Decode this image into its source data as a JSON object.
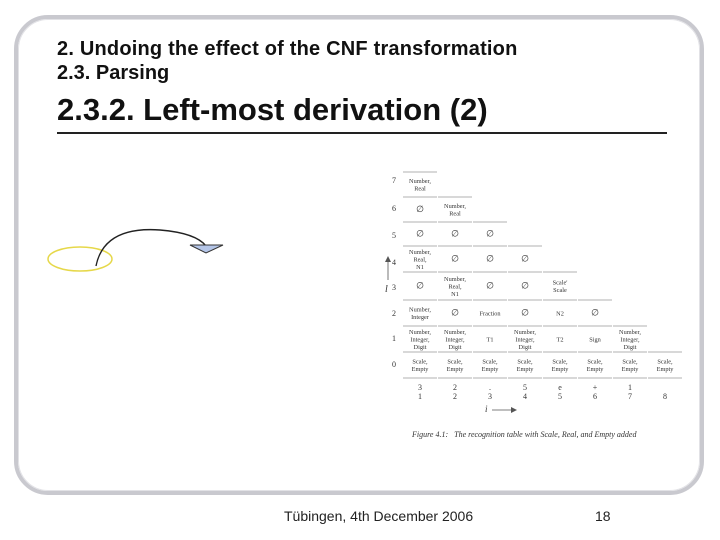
{
  "slide": {
    "supertitle_line1": "2. Undoing the effect of the CNF transformation",
    "supertitle_line2": "2.3. Parsing",
    "title": "2.3.2. Left-most derivation (2)"
  },
  "figure": {
    "caption_label": "Figure 4.1:",
    "caption_text": "The recognition table with Scale, Real, and Empty added",
    "axis_i": "i",
    "axis_l": "l",
    "row_numbers": [
      "7",
      "6",
      "5",
      "4",
      "3",
      "2",
      "1",
      "0"
    ],
    "cells": {
      "r7c1": [
        "Number,",
        "Real"
      ],
      "r6c1": [
        "∅"
      ],
      "r6c2": [
        "Number,",
        "Real"
      ],
      "r5c1": [
        "∅"
      ],
      "r5c2": [
        "∅"
      ],
      "r5c3": [
        "∅"
      ],
      "r4c1": [
        "Number,",
        "Real,",
        "N1"
      ],
      "r4c2": [
        "∅"
      ],
      "r4c3": [
        "∅"
      ],
      "r4c4": [
        "∅"
      ],
      "r3c1": [
        "∅"
      ],
      "r3c2": [
        "Number,",
        "Real,",
        "N1"
      ],
      "r3c3": [
        "∅"
      ],
      "r3c4": [
        "∅"
      ],
      "r3c5": [
        "Scale'",
        "Scale"
      ],
      "r2c1": [
        "Number,",
        "Integer"
      ],
      "r2c2": [
        "∅"
      ],
      "r2c3": [
        "Fraction"
      ],
      "r2c4": [
        "∅"
      ],
      "r2c5": [
        "N2"
      ],
      "r2c6": [
        "∅"
      ],
      "r1c1": [
        "Number,",
        "Integer,",
        "Digit"
      ],
      "r1c2": [
        "Number,",
        "Integer,",
        "Digit"
      ],
      "r1c3": [
        "T1"
      ],
      "r1c4": [
        "Number,",
        "Integer,",
        "Digit"
      ],
      "r1c5": [
        "T2"
      ],
      "r1c6": [
        "Sign"
      ],
      "r1c7": [
        "Number,",
        "Integer,",
        "Digit"
      ],
      "r0c1": [
        "Scale,",
        "Empty"
      ],
      "r0c2": [
        "Scale,",
        "Empty"
      ],
      "r0c3": [
        "Scale,",
        "Empty"
      ],
      "r0c4": [
        "Scale,",
        "Empty"
      ],
      "r0c5": [
        "Scale,",
        "Empty"
      ],
      "r0c6": [
        "Scale,",
        "Empty"
      ],
      "r0c7": [
        "Scale,",
        "Empty"
      ],
      "r0c8": [
        "Scale,",
        "Empty"
      ]
    },
    "tokens": [
      "3",
      "2",
      ".",
      "5",
      "e",
      "+",
      "1",
      ""
    ],
    "positions": [
      "1",
      "2",
      "3",
      "4",
      "5",
      "6",
      "7",
      "8"
    ]
  },
  "footer": {
    "location_date": "Tübingen, 4th December 2006",
    "page_number": "18"
  },
  "colors": {
    "ellipse_stroke": "#e6d84a",
    "triangle_fill": "#b5c6e8"
  }
}
